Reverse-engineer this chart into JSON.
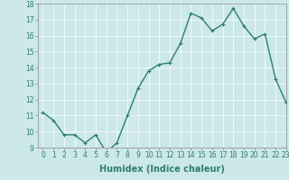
{
  "x": [
    0,
    1,
    2,
    3,
    4,
    5,
    6,
    7,
    8,
    9,
    10,
    11,
    12,
    13,
    14,
    15,
    16,
    17,
    18,
    19,
    20,
    21,
    22,
    23
  ],
  "y": [
    11.2,
    10.7,
    9.8,
    9.8,
    9.3,
    9.8,
    8.7,
    9.3,
    11.0,
    12.7,
    13.8,
    14.2,
    14.3,
    15.5,
    17.4,
    17.1,
    16.3,
    16.7,
    17.7,
    16.6,
    15.8,
    16.1,
    13.3,
    11.8
  ],
  "line_color": "#2e7d6e",
  "bg_color": "#cce8e8",
  "grid_color": "#ffffff",
  "xlabel": "Humidex (Indice chaleur)",
  "ylim": [
    9,
    18
  ],
  "xlim": [
    -0.5,
    23
  ],
  "yticks": [
    9,
    10,
    11,
    12,
    13,
    14,
    15,
    16,
    17,
    18
  ],
  "xticks": [
    0,
    1,
    2,
    3,
    4,
    5,
    6,
    7,
    8,
    9,
    10,
    11,
    12,
    13,
    14,
    15,
    16,
    17,
    18,
    19,
    20,
    21,
    22,
    23
  ],
  "marker": "+",
  "marker_size": 3,
  "line_width": 1.0,
  "xlabel_fontsize": 7,
  "tick_fontsize": 5.5,
  "grid_linewidth": 0.5
}
